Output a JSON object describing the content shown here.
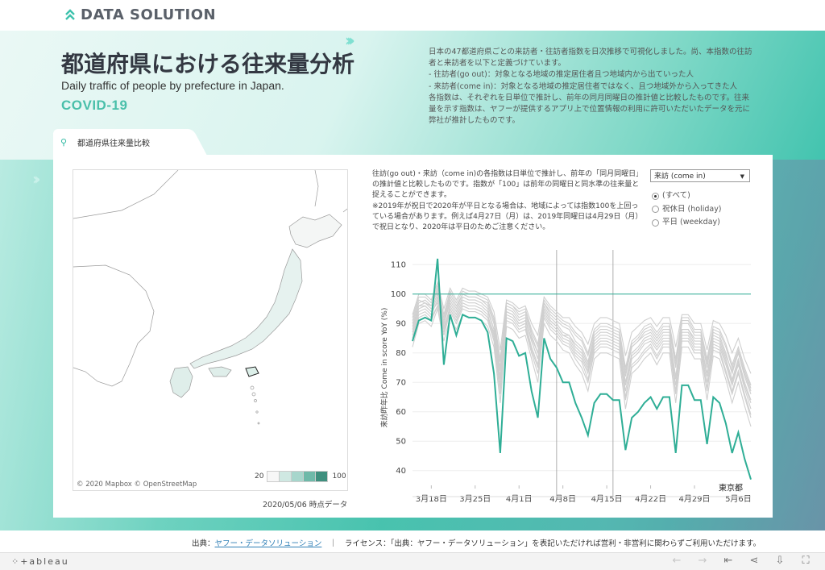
{
  "brand": {
    "name": "DATA SOLUTION"
  },
  "header": {
    "title": "都道府県における往来量分析",
    "subtitle": "Daily traffic of people by prefecture in Japan.",
    "tag": "COVID-19",
    "description": [
      "日本の47都道府県ごとの来訪者・往訪者指数を日次推移で可視化しました。尚、本指数の往訪",
      "者と来訪者を以下と定義づけています。",
      "- 往訪者(go out)：対象となる地域の推定居住者且つ地域内から出ていった人",
      "- 来訪者(come in)：対象となる地域の推定居住者ではなく、且つ地域外から入ってきた人",
      "各指数は、それぞれを日単位で推計し、前年の同月同曜日の推計値と比較したものです。往来",
      "量を示す指数は、ヤフーが提供するアプリ上で位置情報の利用に許可いただいたデータを元に",
      "弊社が推計したものです。"
    ]
  },
  "tab": {
    "label": "都道府県往来量比較"
  },
  "map": {
    "credit": "© 2020 Mapbox  © OpenStreetMap",
    "legend_min": "20",
    "legend_max": "100",
    "legend_colors": [
      "#f7f7f7",
      "#cfe8e2",
      "#a7d6cc",
      "#6fb9a9",
      "#3f8f7e"
    ],
    "as_of": "2020/05/06 時点データ"
  },
  "note": [
    "往訪(go out)・来訪（come in)の各指数は日単位で推計し、前年の「同月同曜日」",
    "の推計値と比較したものです。指数が「100」は前年の同曜日と同水準の往来量と",
    "捉えることができます。",
    "※2019年が祝日で2020年が平日となる場合は、地域によっては指数100を上回っ",
    "ている場合があります。例えば4月27日（月）は、2019年同曜日は4月29日（月）",
    "で祝日となり、2020年は平日のためご注意ください。"
  ],
  "controls": {
    "metric_select": "来訪 (come in)",
    "day_filter": [
      {
        "label": "(すべて)",
        "selected": true
      },
      {
        "label": "祝休日 (holiday)",
        "selected": false
      },
      {
        "label": "平日 (weekday)",
        "selected": false
      }
    ]
  },
  "chart_data": {
    "type": "line",
    "ylabel": "来訪昨年比  Come in score YoY (%)",
    "ylim": [
      35,
      115
    ],
    "yticks": [
      40,
      50,
      60,
      70,
      80,
      90,
      100,
      110
    ],
    "x_start": "3月15日",
    "x_end": "5月6日",
    "xticks": [
      "3月18日",
      "3月25日",
      "4月1日",
      "4月8日",
      "4月15日",
      "4月22日",
      "4月29日",
      "5月6日"
    ],
    "reference_line": 100,
    "vertical_markers": [
      "4月7日",
      "4月16日"
    ],
    "highlight_color": "#2fae96",
    "other_color": "#cfcfcf",
    "series": [
      {
        "name": "東京都",
        "highlight": true,
        "values": [
          84,
          91,
          92,
          91,
          112,
          76,
          93,
          86,
          93,
          92,
          92,
          91,
          87,
          73,
          46,
          85,
          84,
          79,
          80,
          67,
          58,
          85,
          78,
          75,
          70,
          70,
          63,
          58,
          52,
          63,
          66,
          66,
          64,
          64,
          47,
          58,
          60,
          63,
          65,
          61,
          65,
          65,
          46,
          69,
          69,
          64,
          64,
          49,
          65,
          63,
          56,
          46,
          53,
          44,
          37
        ]
      },
      {
        "name": "",
        "values": [
          88,
          96,
          97,
          95,
          100,
          90,
          98,
          94,
          99,
          98,
          98,
          97,
          95,
          88,
          72,
          95,
          94,
          91,
          92,
          84,
          78,
          96,
          92,
          90,
          87,
          86,
          82,
          80,
          75,
          84,
          86,
          86,
          85,
          84,
          70,
          80,
          82,
          85,
          86,
          83,
          86,
          86,
          72,
          88,
          88,
          84,
          84,
          73,
          85,
          84,
          78,
          71,
          78,
          70,
          64
        ]
      },
      {
        "name": "",
        "values": [
          92,
          99,
          99,
          97,
          103,
          93,
          101,
          97,
          101,
          100,
          100,
          99,
          98,
          92,
          78,
          97,
          96,
          94,
          95,
          88,
          83,
          98,
          95,
          93,
          91,
          90,
          87,
          85,
          80,
          88,
          90,
          90,
          89,
          88,
          75,
          84,
          86,
          89,
          90,
          87,
          90,
          90,
          78,
          92,
          92,
          88,
          88,
          78,
          89,
          88,
          83,
          76,
          82,
          75,
          69
        ]
      },
      {
        "name": "",
        "values": [
          90,
          97,
          98,
          96,
          101,
          91,
          99,
          95,
          100,
          99,
          99,
          98,
          96,
          90,
          75,
          96,
          95,
          92,
          93,
          86,
          80,
          97,
          93,
          91,
          89,
          88,
          84,
          82,
          77,
          86,
          88,
          88,
          87,
          86,
          72,
          82,
          84,
          87,
          88,
          85,
          88,
          88,
          75,
          90,
          90,
          86,
          86,
          75,
          87,
          86,
          80,
          73,
          80,
          72,
          66
        ]
      },
      {
        "name": "",
        "values": [
          86,
          94,
          95,
          93,
          98,
          88,
          96,
          92,
          97,
          96,
          96,
          95,
          93,
          86,
          69,
          93,
          92,
          89,
          90,
          82,
          76,
          94,
          90,
          88,
          85,
          84,
          80,
          78,
          73,
          82,
          84,
          84,
          83,
          82,
          67,
          78,
          80,
          83,
          84,
          81,
          84,
          84,
          69,
          86,
          86,
          82,
          82,
          70,
          83,
          82,
          76,
          69,
          76,
          68,
          61
        ]
      },
      {
        "name": "",
        "values": [
          84,
          92,
          93,
          91,
          96,
          86,
          94,
          90,
          95,
          94,
          94,
          93,
          91,
          84,
          66,
          91,
          90,
          87,
          88,
          80,
          73,
          92,
          88,
          86,
          83,
          82,
          78,
          75,
          70,
          80,
          82,
          82,
          81,
          80,
          64,
          75,
          77,
          80,
          82,
          78,
          82,
          82,
          66,
          84,
          84,
          80,
          80,
          67,
          81,
          80,
          73,
          66,
          73,
          65,
          58
        ]
      },
      {
        "name": "",
        "values": [
          89,
          96,
          96,
          94,
          99,
          90,
          97,
          93,
          98,
          97,
          97,
          96,
          94,
          88,
          74,
          94,
          93,
          90,
          91,
          85,
          80,
          95,
          91,
          89,
          86,
          86,
          83,
          81,
          76,
          85,
          87,
          87,
          86,
          85,
          73,
          82,
          84,
          86,
          87,
          84,
          87,
          87,
          76,
          88,
          88,
          85,
          85,
          76,
          86,
          85,
          79,
          74,
          80,
          73,
          67
        ]
      },
      {
        "name": "",
        "values": [
          82,
          90,
          91,
          89,
          95,
          84,
          92,
          88,
          93,
          92,
          92,
          91,
          89,
          82,
          63,
          89,
          88,
          85,
          86,
          78,
          70,
          90,
          86,
          84,
          81,
          80,
          76,
          73,
          67,
          78,
          80,
          80,
          79,
          78,
          61,
          73,
          75,
          78,
          80,
          76,
          80,
          80,
          63,
          82,
          82,
          78,
          78,
          64,
          79,
          78,
          71,
          63,
          70,
          62,
          55
        ]
      },
      {
        "name": "",
        "values": [
          93,
          100,
          100,
          98,
          104,
          95,
          102,
          98,
          102,
          101,
          101,
          100,
          99,
          94,
          81,
          98,
          97,
          95,
          96,
          90,
          86,
          99,
          96,
          94,
          92,
          92,
          89,
          87,
          83,
          90,
          92,
          92,
          91,
          90,
          79,
          87,
          89,
          91,
          92,
          89,
          92,
          92,
          82,
          93,
          93,
          90,
          90,
          81,
          91,
          90,
          86,
          80,
          85,
          78,
          73
        ]
      },
      {
        "name": "",
        "values": [
          87,
          95,
          96,
          94,
          97,
          89,
          95,
          91,
          96,
          95,
          95,
          94,
          92,
          87,
          71,
          94,
          93,
          90,
          91,
          84,
          78,
          95,
          91,
          89,
          86,
          85,
          81,
          79,
          74,
          83,
          85,
          85,
          84,
          83,
          69,
          79,
          81,
          84,
          85,
          82,
          85,
          85,
          71,
          87,
          87,
          83,
          83,
          72,
          84,
          83,
          77,
          70,
          77,
          69,
          63
        ]
      },
      {
        "name": "",
        "values": [
          91,
          98,
          97,
          96,
          102,
          92,
          100,
          96,
          100,
          99,
          99,
          98,
          97,
          91,
          77,
          97,
          96,
          93,
          94,
          87,
          82,
          97,
          94,
          92,
          90,
          89,
          86,
          84,
          79,
          87,
          89,
          89,
          88,
          87,
          74,
          83,
          85,
          88,
          89,
          86,
          89,
          89,
          77,
          91,
          91,
          87,
          87,
          77,
          88,
          87,
          82,
          75,
          81,
          74,
          68
        ]
      },
      {
        "name": "",
        "values": [
          85,
          93,
          94,
          92,
          96,
          87,
          95,
          91,
          96,
          95,
          95,
          94,
          92,
          85,
          68,
          92,
          91,
          88,
          89,
          81,
          75,
          93,
          89,
          87,
          84,
          83,
          79,
          77,
          71,
          81,
          83,
          83,
          82,
          81,
          65,
          76,
          78,
          81,
          83,
          79,
          83,
          83,
          67,
          85,
          85,
          81,
          81,
          68,
          82,
          81,
          74,
          67,
          74,
          66,
          59
        ]
      }
    ]
  },
  "footer": {
    "source_label": "出典：",
    "source_link": "ヤフー・データソリューション",
    "license": "｜　ライセンス：「出典：ヤフー・データソリューション」を表記いただければ営利・非営利に関わらずご利用いただけます。"
  },
  "toolbar": {
    "logo": "⁘+ableau"
  }
}
